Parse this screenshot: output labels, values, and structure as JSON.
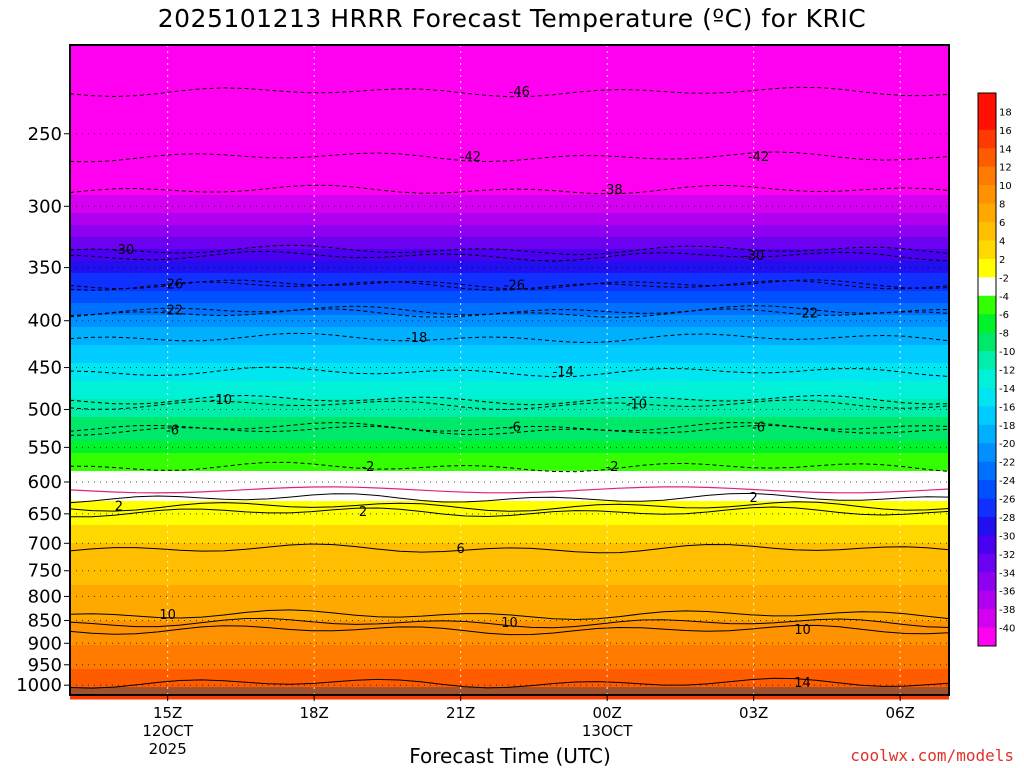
{
  "chart_data": {
    "type": "heatmap",
    "title": "2025101213 HRRR Forecast Temperature (ºC) for KRIC",
    "xlabel": "Forecast Time (UTC)",
    "ylabel": "",
    "watermark": "coolwx.com/models",
    "x_ticks": [
      {
        "hour": 15,
        "label": "15Z",
        "sub": [
          "12OCT",
          "2025"
        ]
      },
      {
        "hour": 18,
        "label": "18Z",
        "sub": []
      },
      {
        "hour": 21,
        "label": "21Z",
        "sub": []
      },
      {
        "hour": 24,
        "label": "00Z",
        "sub": [
          "13OCT"
        ]
      },
      {
        "hour": 27,
        "label": "03Z",
        "sub": []
      },
      {
        "hour": 30,
        "label": "06Z",
        "sub": []
      }
    ],
    "xlim": [
      13,
      31
    ],
    "y_ticks": [
      250,
      300,
      350,
      400,
      450,
      500,
      550,
      600,
      650,
      700,
      750,
      800,
      850,
      900,
      950,
      1000
    ],
    "ylim_hpa": [
      200,
      1025
    ],
    "colorbar": {
      "levels": [
        "18",
        "16",
        "14",
        "12",
        "10",
        "8",
        "6",
        "4",
        "2",
        "-2",
        "-4",
        "-6",
        "-8",
        "-10",
        "-12",
        "-14",
        "-16",
        "-18",
        "-20",
        "-22",
        "-24",
        "-26",
        "-28",
        "-30",
        "-32",
        "-34",
        "-36",
        "-38",
        "-40"
      ],
      "colors": [
        "#ff1000",
        "#ff3a00",
        "#ff5c00",
        "#ff7a00",
        "#ff9200",
        "#ffa800",
        "#ffbe00",
        "#ffd800",
        "#ffff00",
        "#ffffff",
        "#33ff00",
        "#00f22a",
        "#00e86a",
        "#00eeaa",
        "#00f0d8",
        "#00e6f0",
        "#00ccff",
        "#00b0ff",
        "#0090ff",
        "#0070ff",
        "#0050ff",
        "#1030ff",
        "#2010f0",
        "#4a00f0",
        "#6c00f0",
        "#8e00f0",
        "#b000f0",
        "#d400f0",
        "#ff00f0"
      ]
    },
    "bands": [
      {
        "p": 200,
        "t": -48
      },
      {
        "p": 250,
        "t": -44
      },
      {
        "p": 300,
        "t": -37
      },
      {
        "p": 350,
        "t": -27
      },
      {
        "p": 400,
        "t": -19
      },
      {
        "p": 450,
        "t": -13
      },
      {
        "p": 500,
        "t": -9
      },
      {
        "p": 550,
        "t": -5
      },
      {
        "p": 590,
        "t": -1
      },
      {
        "p": 600,
        "t": 0
      },
      {
        "p": 650,
        "t": 3
      },
      {
        "p": 700,
        "t": 6
      },
      {
        "p": 750,
        "t": 7
      },
      {
        "p": 800,
        "t": 9
      },
      {
        "p": 850,
        "t": 10
      },
      {
        "p": 900,
        "t": 12
      },
      {
        "p": 950,
        "t": 13
      },
      {
        "p": 1000,
        "t": 16
      }
    ],
    "contours": [
      {
        "value": -46,
        "label": "-46",
        "p": 225,
        "label_hour": 22.2
      },
      {
        "value": -42,
        "label": "-42",
        "p": 265,
        "label_hour": 21.2
      },
      {
        "value": -42,
        "label": "-42",
        "p": 265,
        "label_hour": 27.1
      },
      {
        "value": -38,
        "label": "-38",
        "p": 288,
        "label_hour": 24.1
      },
      {
        "value": -30,
        "label": "-30",
        "p": 335,
        "label_hour": 14.1
      },
      {
        "value": -30,
        "label": "-30",
        "p": 340,
        "label_hour": 27.0
      },
      {
        "value": -26,
        "label": "-26",
        "p": 365,
        "label_hour": 15.1
      },
      {
        "value": -26,
        "label": "-26",
        "p": 366,
        "label_hour": 22.1
      },
      {
        "value": -22,
        "label": "-22",
        "p": 390,
        "label_hour": 15.1
      },
      {
        "value": -22,
        "label": "-22",
        "p": 393,
        "label_hour": 28.1
      },
      {
        "value": -18,
        "label": "-18",
        "p": 418,
        "label_hour": 20.1
      },
      {
        "value": -14,
        "label": "-14",
        "p": 455,
        "label_hour": 23.1
      },
      {
        "value": -10,
        "label": "-10",
        "p": 488,
        "label_hour": 16.1
      },
      {
        "value": -10,
        "label": "-10",
        "p": 494,
        "label_hour": 24.6
      },
      {
        "value": -6,
        "label": "-6",
        "p": 527,
        "label_hour": 15.1
      },
      {
        "value": -6,
        "label": "-6",
        "p": 523,
        "label_hour": 22.1
      },
      {
        "value": -6,
        "label": "-6",
        "p": 523,
        "label_hour": 27.1
      },
      {
        "value": -2,
        "label": "-2",
        "p": 578,
        "label_hour": 19.1
      },
      {
        "value": -2,
        "label": "-2",
        "p": 578,
        "label_hour": 24.1
      },
      {
        "value": 2,
        "label": "2",
        "p": 638,
        "label_hour": 14.0
      },
      {
        "value": 2,
        "label": "2",
        "p": 647,
        "label_hour": 19.0
      },
      {
        "value": 2,
        "label": "2",
        "p": 625,
        "label_hour": 27.0
      },
      {
        "value": 6,
        "label": "6",
        "p": 710,
        "label_hour": 21.0
      },
      {
        "value": 10,
        "label": "10",
        "p": 838,
        "label_hour": 15.0
      },
      {
        "value": 10,
        "label": "10",
        "p": 855,
        "label_hour": 22.0
      },
      {
        "value": 10,
        "label": "10",
        "p": 870,
        "label_hour": 28.0
      },
      {
        "value": 14,
        "label": "14",
        "p": 995,
        "label_hour": 28.0
      }
    ]
  }
}
